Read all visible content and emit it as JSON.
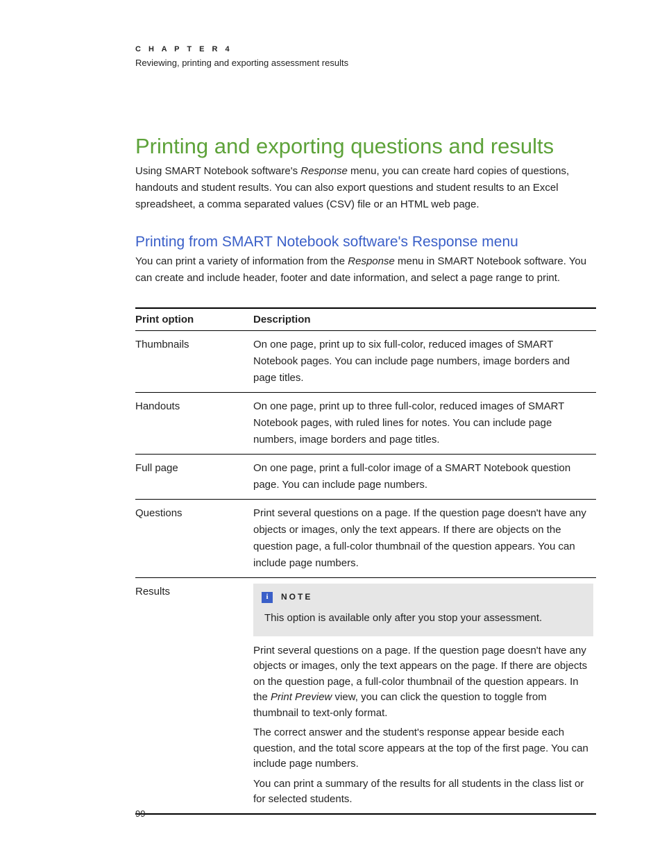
{
  "colors": {
    "title_green": "#5da239",
    "section_blue": "#3a5fc8",
    "text": "#232323",
    "note_bg": "#e6e6e6",
    "note_icon_bg": "#3a5fc8",
    "rule": "#000000",
    "background": "#ffffff"
  },
  "typography": {
    "body_fontsize": 15,
    "title_fontsize": 31,
    "section_fontsize": 21,
    "chapter_label_fontsize": 11,
    "chapter_subtitle_fontsize": 13
  },
  "header": {
    "chapter_label": "C H A P T E R   4",
    "chapter_subtitle": "Reviewing, printing and exporting assessment results"
  },
  "title": "Printing and exporting questions and results",
  "intro": {
    "pre_em": "Using SMART Notebook software's ",
    "em": "Response",
    "post_em": " menu, you can create hard copies of questions, handouts and student results. You can also export questions and student results to an Excel spreadsheet, a comma separated values (CSV) file or an HTML web page."
  },
  "section": {
    "heading": "Printing from SMART Notebook software's Response menu",
    "para_pre": "You can print a variety of information from the ",
    "para_em": "Response",
    "para_post": " menu in SMART Notebook software. You can create and include header, footer and date information, and select a page range to print."
  },
  "table": {
    "columns": [
      "Print option",
      "Description"
    ],
    "rows": [
      {
        "option": "Thumbnails",
        "desc": "On one page, print up to six full-color, reduced images of SMART Notebook pages. You can include page numbers, image borders and page titles."
      },
      {
        "option": "Handouts",
        "desc": "On one page, print up to three full-color, reduced images of SMART Notebook pages, with ruled lines for notes. You can include page numbers, image borders and page titles."
      },
      {
        "option": "Full page",
        "desc": "On one page, print a full-color image of a SMART Notebook question page. You can include page numbers."
      },
      {
        "option": "Questions",
        "desc": "Print several questions on a page. If the question page doesn't have any objects or images, only the text appears. If there are objects on the question page, a full-color thumbnail of the question appears. You can include page numbers."
      }
    ],
    "results_row": {
      "option": "Results",
      "note_label": "NOTE",
      "note_body": "This option is available only after you stop your assessment.",
      "p1_pre": "Print several questions on a page. If the question page doesn't have any objects or images, only the text appears on the page. If there are objects on the question page, a full-color thumbnail of the question appears. In the ",
      "p1_em": "Print Preview",
      "p1_post": " view, you can click the question to toggle from thumbnail to text-only format.",
      "p2": "The correct answer and the student's response appear beside each question, and the total score appears at the top of the first page. You can include page numbers.",
      "p3": "You can print a summary of the results for all students in the class list or for selected students."
    }
  },
  "page_number": "99"
}
